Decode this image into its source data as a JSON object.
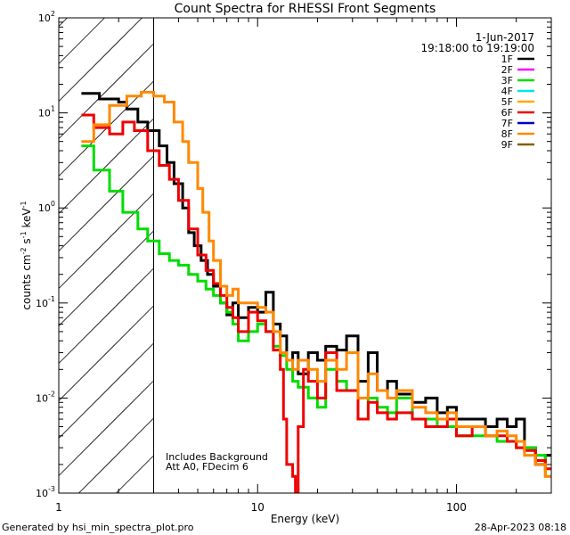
{
  "chart_data": {
    "type": "line",
    "title": "Count Spectra for RHESSI Front Segments",
    "xlabel": "Energy (keV)",
    "ylabel": {
      "base": "counts cm",
      "exp1": "-2",
      "mid1": " s",
      "exp2": "-1",
      "mid2": " keV",
      "exp3": "-1"
    },
    "xscale": "log",
    "yscale": "log",
    "xlim": [
      1,
      300
    ],
    "ylim": [
      0.001,
      100
    ],
    "x_ticks": [
      {
        "value": 1,
        "label": "1"
      },
      {
        "value": 10,
        "label": "10"
      },
      {
        "value": 100,
        "label": "100"
      }
    ],
    "y_ticks": [
      {
        "value": 0.001,
        "base": "10",
        "exp": "-3"
      },
      {
        "value": 0.01,
        "base": "10",
        "exp": "-2"
      },
      {
        "value": 0.1,
        "base": "10",
        "exp": "-1"
      },
      {
        "value": 1,
        "base": "10",
        "exp": "0"
      },
      {
        "value": 10,
        "base": "10",
        "exp": "1"
      },
      {
        "value": 100,
        "base": "10",
        "exp": "2"
      }
    ],
    "hatched_region_max_energy": 3,
    "date": "1-Jun-2017",
    "time_range": "19:18:00 to 19:19:00",
    "legend_position": "top-right",
    "legend": [
      {
        "name": "1F",
        "color": "#000000"
      },
      {
        "name": "2F",
        "color": "#ff00ff"
      },
      {
        "name": "3F",
        "color": "#00dd00"
      },
      {
        "name": "4F",
        "color": "#00e5ee"
      },
      {
        "name": "5F",
        "color": "#ffaa00"
      },
      {
        "name": "6F",
        "color": "#ee0000"
      },
      {
        "name": "7F",
        "color": "#0000cc"
      },
      {
        "name": "8F",
        "color": "#ff8800"
      },
      {
        "name": "9F",
        "color": "#806000"
      }
    ],
    "series": [
      {
        "name": "1F",
        "color": "#000000",
        "points": [
          [
            1.3,
            16
          ],
          [
            1.6,
            14
          ],
          [
            2.0,
            13
          ],
          [
            2.2,
            11
          ],
          [
            2.5,
            8
          ],
          [
            2.8,
            6.5
          ],
          [
            3.2,
            4.5
          ],
          [
            3.5,
            3
          ],
          [
            3.8,
            1.8
          ],
          [
            4.2,
            1
          ],
          [
            4.5,
            0.55
          ],
          [
            4.8,
            0.4
          ],
          [
            5.2,
            0.28
          ],
          [
            5.6,
            0.2
          ],
          [
            6.0,
            0.15
          ],
          [
            6.5,
            0.1
          ],
          [
            7.0,
            0.075
          ],
          [
            7.5,
            0.1
          ],
          [
            8.0,
            0.07
          ],
          [
            9.0,
            0.09
          ],
          [
            10.0,
            0.08
          ],
          [
            11.0,
            0.13
          ],
          [
            12.0,
            0.06
          ],
          [
            13.0,
            0.045
          ],
          [
            14.0,
            0.025
          ],
          [
            15.0,
            0.03
          ],
          [
            16.0,
            0.018
          ],
          [
            18.0,
            0.03
          ],
          [
            20.0,
            0.025
          ],
          [
            22.0,
            0.035
          ],
          [
            25.0,
            0.032
          ],
          [
            28.0,
            0.045
          ],
          [
            32.0,
            0.015
          ],
          [
            36.0,
            0.03
          ],
          [
            40.0,
            0.012
          ],
          [
            45.0,
            0.015
          ],
          [
            50.0,
            0.011
          ],
          [
            60.0,
            0.009
          ],
          [
            70.0,
            0.01
          ],
          [
            80.0,
            0.007
          ],
          [
            90.0,
            0.008
          ],
          [
            100.0,
            0.006
          ],
          [
            120.0,
            0.006
          ],
          [
            140.0,
            0.005
          ],
          [
            160.0,
            0.006
          ],
          [
            180.0,
            0.005
          ],
          [
            200.0,
            0.006
          ],
          [
            220.0,
            0.003
          ],
          [
            250.0,
            0.002
          ],
          [
            280.0,
            0.0025
          ]
        ]
      },
      {
        "name": "3F",
        "color": "#00dd00",
        "points": [
          [
            1.3,
            4.5
          ],
          [
            1.5,
            2.5
          ],
          [
            1.8,
            1.5
          ],
          [
            2.1,
            0.9
          ],
          [
            2.5,
            0.6
          ],
          [
            2.8,
            0.45
          ],
          [
            3.2,
            0.33
          ],
          [
            3.6,
            0.28
          ],
          [
            4.0,
            0.25
          ],
          [
            4.5,
            0.2
          ],
          [
            5.0,
            0.17
          ],
          [
            5.5,
            0.14
          ],
          [
            6.0,
            0.12
          ],
          [
            6.5,
            0.1
          ],
          [
            7.0,
            0.08
          ],
          [
            7.5,
            0.06
          ],
          [
            8.0,
            0.04
          ],
          [
            9.0,
            0.05
          ],
          [
            10.0,
            0.06
          ],
          [
            11.0,
            0.05
          ],
          [
            12.0,
            0.035
          ],
          [
            13.0,
            0.028
          ],
          [
            14.0,
            0.02
          ],
          [
            15.0,
            0.015
          ],
          [
            16.0,
            0.013
          ],
          [
            18.0,
            0.01
          ],
          [
            20.0,
            0.008
          ],
          [
            22.0,
            0.02
          ],
          [
            25.0,
            0.015
          ],
          [
            28.0,
            0.012
          ],
          [
            32.0,
            0.006
          ],
          [
            36.0,
            0.01
          ],
          [
            40.0,
            0.008
          ],
          [
            45.0,
            0.007
          ],
          [
            50.0,
            0.01
          ],
          [
            60.0,
            0.006
          ],
          [
            70.0,
            0.006
          ],
          [
            80.0,
            0.005
          ],
          [
            90.0,
            0.005
          ],
          [
            100.0,
            0.004
          ],
          [
            120.0,
            0.004
          ],
          [
            140.0,
            0.004
          ],
          [
            160.0,
            0.0035
          ],
          [
            180.0,
            0.0035
          ],
          [
            200.0,
            0.003
          ],
          [
            220.0,
            0.003
          ],
          [
            250.0,
            0.0025
          ],
          [
            280.0,
            0.0015
          ]
        ]
      },
      {
        "name": "6F",
        "color": "#ee0000",
        "points": [
          [
            1.3,
            9.5
          ],
          [
            1.5,
            7
          ],
          [
            1.8,
            6
          ],
          [
            2.1,
            8
          ],
          [
            2.4,
            6.5
          ],
          [
            2.8,
            4
          ],
          [
            3.2,
            2.8
          ],
          [
            3.6,
            2
          ],
          [
            4.0,
            1.2
          ],
          [
            4.5,
            0.6
          ],
          [
            5.0,
            0.32
          ],
          [
            5.5,
            0.22
          ],
          [
            6.0,
            0.16
          ],
          [
            6.5,
            0.12
          ],
          [
            7.0,
            0.09
          ],
          [
            7.5,
            0.07
          ],
          [
            8.0,
            0.05
          ],
          [
            9.0,
            0.08
          ],
          [
            10.0,
            0.065
          ],
          [
            11.0,
            0.05
          ],
          [
            12.0,
            0.032
          ],
          [
            13.0,
            0.02
          ],
          [
            13.5,
            0.006
          ],
          [
            14.0,
            0.002
          ],
          [
            15.0,
            0.0015
          ],
          [
            15.5,
            0.001
          ],
          [
            16.0,
            0.005
          ],
          [
            17.0,
            0.02
          ],
          [
            18.0,
            0.015
          ],
          [
            20.0,
            0.01
          ],
          [
            22.0,
            0.03
          ],
          [
            25.0,
            0.012
          ],
          [
            28.0,
            0.012
          ],
          [
            32.0,
            0.006
          ],
          [
            36.0,
            0.009
          ],
          [
            40.0,
            0.007
          ],
          [
            45.0,
            0.006
          ],
          [
            50.0,
            0.007
          ],
          [
            60.0,
            0.006
          ],
          [
            70.0,
            0.005
          ],
          [
            80.0,
            0.005
          ],
          [
            90.0,
            0.006
          ],
          [
            100.0,
            0.004
          ],
          [
            120.0,
            0.005
          ],
          [
            140.0,
            0.004
          ],
          [
            160.0,
            0.004
          ],
          [
            180.0,
            0.0035
          ],
          [
            200.0,
            0.003
          ],
          [
            220.0,
            0.0028
          ],
          [
            250.0,
            0.0022
          ],
          [
            280.0,
            0.0018
          ]
        ]
      },
      {
        "name": "8F",
        "color": "#ff8800",
        "points": [
          [
            1.3,
            5
          ],
          [
            1.5,
            7.5
          ],
          [
            1.8,
            12
          ],
          [
            2.2,
            15
          ],
          [
            2.6,
            16.5
          ],
          [
            3.0,
            15
          ],
          [
            3.4,
            13
          ],
          [
            3.8,
            8
          ],
          [
            4.2,
            5
          ],
          [
            4.5,
            3
          ],
          [
            5.0,
            1.6
          ],
          [
            5.3,
            0.9
          ],
          [
            5.7,
            0.45
          ],
          [
            6.0,
            0.28
          ],
          [
            6.5,
            0.15
          ],
          [
            7.0,
            0.12
          ],
          [
            7.5,
            0.14
          ],
          [
            8.0,
            0.1
          ],
          [
            9.0,
            0.1
          ],
          [
            10.0,
            0.09
          ],
          [
            11.0,
            0.08
          ],
          [
            12.0,
            0.05
          ],
          [
            13.0,
            0.03
          ],
          [
            14.0,
            0.025
          ],
          [
            15.0,
            0.02
          ],
          [
            16.0,
            0.025
          ],
          [
            18.0,
            0.02
          ],
          [
            20.0,
            0.015
          ],
          [
            22.0,
            0.025
          ],
          [
            25.0,
            0.02
          ],
          [
            28.0,
            0.03
          ],
          [
            32.0,
            0.01
          ],
          [
            36.0,
            0.018
          ],
          [
            40.0,
            0.012
          ],
          [
            45.0,
            0.01
          ],
          [
            50.0,
            0.012
          ],
          [
            60.0,
            0.008
          ],
          [
            70.0,
            0.007
          ],
          [
            80.0,
            0.006
          ],
          [
            90.0,
            0.007
          ],
          [
            100.0,
            0.005
          ],
          [
            120.0,
            0.005
          ],
          [
            140.0,
            0.004
          ],
          [
            160.0,
            0.0045
          ],
          [
            180.0,
            0.004
          ],
          [
            200.0,
            0.0035
          ],
          [
            220.0,
            0.0025
          ],
          [
            250.0,
            0.002
          ],
          [
            280.0,
            0.0015
          ]
        ]
      }
    ],
    "annotations": [
      "Includes Background",
      "Att A0, FDecim 6"
    ]
  },
  "footer": {
    "generated_by": "Generated by hsi_min_spectra_plot.pro",
    "timestamp": "28-Apr-2023 08:18"
  }
}
